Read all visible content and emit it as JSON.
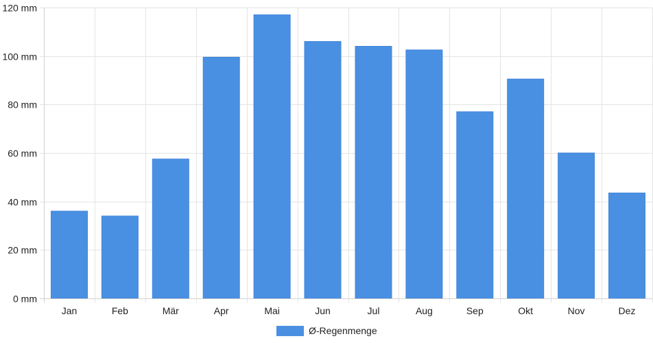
{
  "chart_data": {
    "type": "bar",
    "categories": [
      "Jan",
      "Feb",
      "Mär",
      "Apr",
      "Mai",
      "Jun",
      "Jul",
      "Aug",
      "Sep",
      "Okt",
      "Nov",
      "Dez"
    ],
    "series": [
      {
        "name": "Ø-Regenmenge",
        "values": [
          36,
          34,
          57.5,
          99.5,
          117,
          106,
          104,
          102.5,
          77,
          90.5,
          60,
          43.5
        ],
        "color": "#4a90e2"
      }
    ],
    "title": "",
    "xlabel": "",
    "ylabel": "",
    "ylim": [
      0,
      120
    ],
    "yticks": [
      "0 mm",
      "20 mm",
      "40 mm",
      "60 mm",
      "80 mm",
      "100 mm",
      "120 mm"
    ],
    "grid": true,
    "legend_position": "bottom-center"
  }
}
